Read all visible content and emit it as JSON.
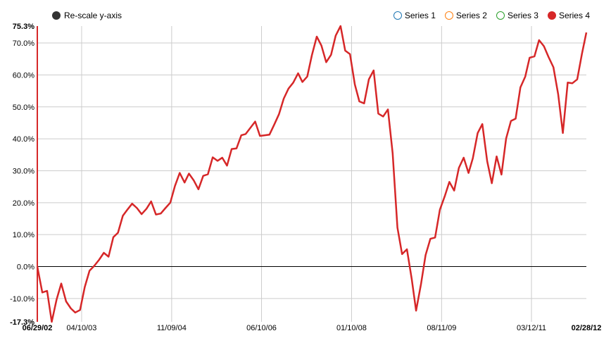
{
  "toolbar": {
    "rescale_label": "Re-scale y-axis"
  },
  "legend": [
    {
      "name": "Series 1",
      "color": "#1f77b4",
      "active": false
    },
    {
      "name": "Series 2",
      "color": "#ff7f0e",
      "active": false
    },
    {
      "name": "Series 3",
      "color": "#2ca02c",
      "active": false
    },
    {
      "name": "Series 4",
      "color": "#d62728",
      "active": true
    }
  ],
  "chart_data": {
    "type": "line",
    "title": "",
    "xlabel": "",
    "ylabel": "",
    "ylim": [
      -17.3,
      75.3
    ],
    "y_ticks": [
      "-10.0%",
      "0.0%",
      "10.0%",
      "20.0%",
      "30.0%",
      "40.0%",
      "50.0%",
      "60.0%",
      "70.0%"
    ],
    "y_tick_values": [
      -10,
      0,
      10,
      20,
      30,
      40,
      50,
      60,
      70
    ],
    "y_extent_labels": {
      "max": "75.3%",
      "min": "-17.3%"
    },
    "x_extent_labels": {
      "start": "06/29/02",
      "end": "02/28/12"
    },
    "x_ticks": [
      "04/10/03",
      "11/09/04",
      "06/10/06",
      "01/10/08",
      "08/11/09",
      "03/12/11"
    ],
    "x_tick_dates": [
      "2003-04-10",
      "2004-11-09",
      "2006-06-10",
      "2008-01-10",
      "2009-08-11",
      "2011-03-12"
    ],
    "x_range": [
      "2002-06-29",
      "2012-02-28"
    ],
    "grid": true,
    "series": [
      {
        "name": "Series 4",
        "color": "#d62728",
        "x": [
          "2002-06-29",
          "2002-07-31",
          "2002-08-31",
          "2002-09-30",
          "2002-10-31",
          "2002-11-30",
          "2002-12-31",
          "2003-01-31",
          "2003-02-28",
          "2003-03-31",
          "2003-04-30",
          "2003-05-31",
          "2003-06-30",
          "2003-07-31",
          "2003-08-31",
          "2003-09-30",
          "2003-10-31",
          "2003-11-30",
          "2003-12-31",
          "2004-01-31",
          "2004-02-29",
          "2004-03-31",
          "2004-04-30",
          "2004-05-31",
          "2004-06-30",
          "2004-07-31",
          "2004-08-31",
          "2004-09-30",
          "2004-10-31",
          "2004-11-30",
          "2004-12-31",
          "2005-01-31",
          "2005-02-28",
          "2005-03-31",
          "2005-04-30",
          "2005-05-31",
          "2005-06-30",
          "2005-07-31",
          "2005-08-31",
          "2005-09-30",
          "2005-10-31",
          "2005-11-30",
          "2005-12-31",
          "2006-01-31",
          "2006-02-28",
          "2006-03-31",
          "2006-04-30",
          "2006-05-31",
          "2006-06-30",
          "2006-07-31",
          "2006-08-31",
          "2006-09-30",
          "2006-10-31",
          "2006-11-30",
          "2006-12-31",
          "2007-01-31",
          "2007-02-28",
          "2007-03-31",
          "2007-04-30",
          "2007-05-31",
          "2007-06-30",
          "2007-07-31",
          "2007-08-31",
          "2007-09-30",
          "2007-10-31",
          "2007-11-30",
          "2007-12-31",
          "2008-01-31",
          "2008-02-29",
          "2008-03-31",
          "2008-04-30",
          "2008-05-31",
          "2008-06-30",
          "2008-07-31",
          "2008-08-31",
          "2008-09-30",
          "2008-10-31",
          "2008-11-30",
          "2008-12-31",
          "2009-01-31",
          "2009-02-28",
          "2009-03-31",
          "2009-04-30",
          "2009-05-31",
          "2009-06-30",
          "2009-07-31",
          "2009-08-31",
          "2009-09-30",
          "2009-10-31",
          "2009-11-30",
          "2009-12-31",
          "2010-01-31",
          "2010-02-28",
          "2010-03-31",
          "2010-04-30",
          "2010-05-31",
          "2010-06-30",
          "2010-07-31",
          "2010-08-31",
          "2010-09-30",
          "2010-10-31",
          "2010-11-30",
          "2010-12-31",
          "2011-01-31",
          "2011-02-28",
          "2011-03-31",
          "2011-04-30",
          "2011-05-31",
          "2011-06-30",
          "2011-07-31",
          "2011-08-31",
          "2011-09-30",
          "2011-10-31",
          "2011-11-30",
          "2011-12-31",
          "2012-01-31",
          "2012-02-28"
        ],
        "y": [
          0.0,
          -8.1,
          -7.6,
          -17.3,
          -10.3,
          -5.3,
          -10.9,
          -13.1,
          -14.4,
          -13.6,
          -6.4,
          -1.3,
          0.2,
          2.1,
          4.3,
          3.1,
          9.2,
          10.6,
          15.9,
          17.9,
          19.7,
          18.3,
          16.4,
          18.1,
          20.4,
          16.3,
          16.6,
          18.3,
          20.0,
          25.2,
          29.3,
          26.3,
          29.1,
          27.0,
          24.2,
          28.4,
          28.9,
          34.2,
          33.1,
          34.1,
          31.6,
          36.8,
          37.0,
          41.1,
          41.5,
          43.5,
          45.4,
          40.9,
          41.1,
          41.3,
          44.5,
          47.7,
          52.6,
          55.7,
          57.6,
          60.5,
          57.8,
          59.5,
          66.2,
          72.0,
          69.2,
          64.0,
          66.3,
          72.3,
          75.3,
          67.6,
          66.5,
          57.0,
          51.7,
          51.1,
          58.6,
          61.4,
          47.9,
          47.0,
          49.2,
          35.5,
          12.2,
          3.9,
          5.4,
          -3.9,
          -13.8,
          -5.6,
          3.6,
          8.7,
          9.1,
          17.8,
          22.0,
          26.5,
          23.8,
          30.9,
          34.1,
          29.3,
          33.9,
          41.8,
          44.6,
          33.0,
          26.1,
          34.5,
          28.8,
          40.1,
          45.6,
          46.3,
          56.1,
          59.5,
          65.4,
          65.8,
          70.9,
          69.0,
          65.6,
          62.4,
          53.9,
          41.8,
          57.6,
          57.4,
          58.6,
          66.7,
          73.3
        ]
      }
    ]
  }
}
